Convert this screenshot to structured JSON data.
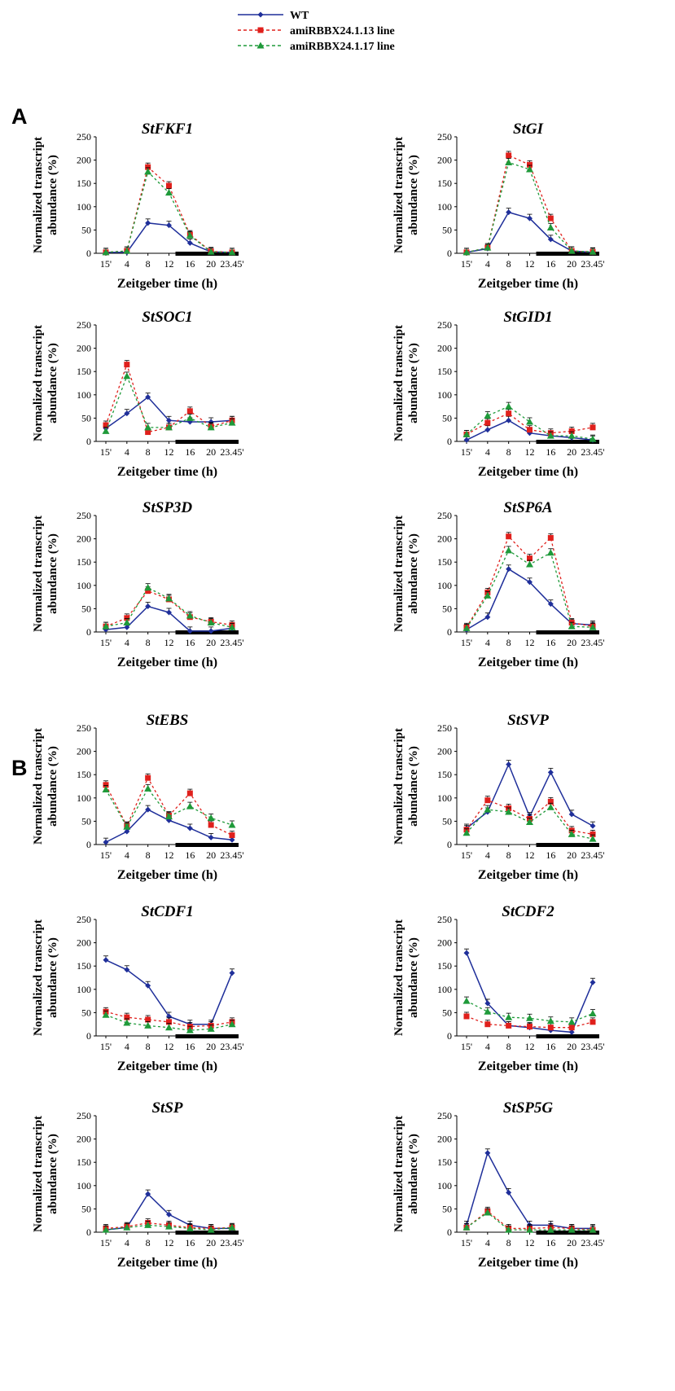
{
  "figure": {
    "panel_labels": [
      "A",
      "B"
    ],
    "colors": {
      "WT": "#1f2f9a",
      "line13": "#e0201c",
      "line17": "#1f9a3a"
    }
  },
  "legend": [
    {
      "label": "WT",
      "color": "#1f2f9a",
      "style": "solid",
      "marker": "diamond"
    },
    {
      "label": "amiRBBX24.1.13 line",
      "color": "#e0201c",
      "style": "dashed",
      "marker": "square"
    },
    {
      "label": "amiRBBX24.1.17 line",
      "color": "#1f9a3a",
      "style": "dashed",
      "marker": "triangle"
    }
  ],
  "chart_data": [
    {
      "panel": "A",
      "type": "line",
      "title": "StFKF1",
      "xlabel": "Zeitgeber time (h)",
      "ylabel": "Normalized transcript abundance (%)",
      "categories": [
        "15'",
        "4",
        "8",
        "12",
        "16",
        "20",
        "23.45'"
      ],
      "yticks": [
        0,
        50,
        100,
        150,
        200,
        250
      ],
      "ylim": [
        0,
        250
      ],
      "dark_period_from": "12",
      "series": [
        {
          "name": "WT",
          "values": [
            2,
            2,
            65,
            60,
            22,
            3,
            2
          ]
        },
        {
          "name": "amiRBBX24.1.13 line",
          "values": [
            2,
            5,
            185,
            145,
            40,
            4,
            2
          ]
        },
        {
          "name": "amiRBBX24.1.17 line",
          "values": [
            2,
            5,
            175,
            130,
            38,
            3,
            2
          ]
        }
      ]
    },
    {
      "panel": "A",
      "type": "line",
      "title": "StGI",
      "xlabel": "Zeitgeber time (h)",
      "ylabel": "Normalized transcript abundance (%)",
      "categories": [
        "15'",
        "4",
        "8",
        "12",
        "16",
        "20",
        "23.45'"
      ],
      "yticks": [
        0,
        50,
        100,
        150,
        200,
        250
      ],
      "ylim": [
        0,
        250
      ],
      "dark_period_from": "12",
      "series": [
        {
          "name": "WT",
          "values": [
            2,
            10,
            88,
            75,
            30,
            5,
            2
          ]
        },
        {
          "name": "amiRBBX24.1.13 line",
          "values": [
            2,
            12,
            210,
            190,
            75,
            5,
            3
          ]
        },
        {
          "name": "amiRBBX24.1.17 line",
          "values": [
            2,
            12,
            195,
            180,
            55,
            5,
            3
          ]
        }
      ]
    },
    {
      "panel": "A",
      "type": "line",
      "title": "StSOC1",
      "xlabel": "Zeitgeber time (h)",
      "ylabel": "Normalized transcript abundance (%)",
      "categories": [
        "15'",
        "4",
        "8",
        "12",
        "16",
        "20",
        "23.45'"
      ],
      "yticks": [
        0,
        50,
        100,
        150,
        200,
        250
      ],
      "ylim": [
        0,
        250
      ],
      "dark_period_from": "12",
      "series": [
        {
          "name": "WT",
          "values": [
            28,
            60,
            95,
            45,
            42,
            42,
            45
          ]
        },
        {
          "name": "amiRBBX24.1.13 line",
          "values": [
            35,
            165,
            20,
            30,
            65,
            32,
            45
          ]
        },
        {
          "name": "amiRBBX24.1.17 line",
          "values": [
            22,
            140,
            30,
            30,
            50,
            30,
            40
          ]
        }
      ]
    },
    {
      "panel": "A",
      "type": "line",
      "title": "StGID1",
      "xlabel": "Zeitgeber time (h)",
      "ylabel": "Normalized transcript abundance (%)",
      "categories": [
        "15'",
        "4",
        "8",
        "12",
        "16",
        "20",
        "23.45'"
      ],
      "yticks": [
        0,
        50,
        100,
        150,
        200,
        250
      ],
      "ylim": [
        0,
        250
      ],
      "dark_period_from": "12",
      "series": [
        {
          "name": "WT",
          "values": [
            3,
            25,
            45,
            18,
            12,
            8,
            3
          ]
        },
        {
          "name": "amiRBBX24.1.13 line",
          "values": [
            15,
            40,
            60,
            25,
            18,
            22,
            30
          ]
        },
        {
          "name": "amiRBBX24.1.17 line",
          "values": [
            15,
            55,
            75,
            42,
            12,
            12,
            5
          ]
        }
      ]
    },
    {
      "panel": "A",
      "type": "line",
      "title": "StSP3D",
      "xlabel": "Zeitgeber time (h)",
      "ylabel": "Normalized transcript abundance (%)",
      "categories": [
        "15'",
        "4",
        "8",
        "12",
        "16",
        "20",
        "23.45'"
      ],
      "yticks": [
        0,
        50,
        100,
        150,
        200,
        250
      ],
      "ylim": [
        0,
        250
      ],
      "dark_period_from": "12",
      "series": [
        {
          "name": "WT",
          "values": [
            5,
            10,
            55,
            42,
            2,
            2,
            8
          ]
        },
        {
          "name": "amiRBBX24.1.13 line",
          "values": [
            12,
            30,
            88,
            70,
            32,
            22,
            15
          ]
        },
        {
          "name": "amiRBBX24.1.17 line",
          "values": [
            12,
            20,
            95,
            72,
            35,
            20,
            10
          ]
        }
      ]
    },
    {
      "panel": "A",
      "type": "line",
      "title": "StSP6A",
      "xlabel": "Zeitgeber time (h)",
      "ylabel": "Normalized transcript abundance (%)",
      "categories": [
        "15'",
        "4",
        "8",
        "12",
        "16",
        "20",
        "23.45'"
      ],
      "yticks": [
        0,
        50,
        100,
        150,
        200,
        250
      ],
      "ylim": [
        0,
        250
      ],
      "dark_period_from": "12",
      "series": [
        {
          "name": "WT",
          "values": [
            5,
            32,
            135,
            107,
            60,
            18,
            15
          ]
        },
        {
          "name": "amiRBBX24.1.13 line",
          "values": [
            10,
            85,
            205,
            158,
            202,
            20,
            12
          ]
        },
        {
          "name": "amiRBBX24.1.17 line",
          "values": [
            8,
            78,
            175,
            145,
            170,
            12,
            10
          ]
        }
      ]
    },
    {
      "panel": "B",
      "type": "line",
      "title": "StEBS",
      "xlabel": "Zeitgeber time (h)",
      "ylabel": "Normalized transcript abundance (%)",
      "categories": [
        "15'",
        "4",
        "8",
        "12",
        "16",
        "20",
        "23.45'"
      ],
      "yticks": [
        0,
        50,
        100,
        150,
        200,
        250
      ],
      "ylim": [
        0,
        250
      ],
      "dark_period_from": "12",
      "series": [
        {
          "name": "WT",
          "values": [
            5,
            28,
            75,
            52,
            35,
            15,
            10
          ]
        },
        {
          "name": "amiRBBX24.1.13 line",
          "values": [
            128,
            40,
            143,
            62,
            110,
            42,
            20
          ]
        },
        {
          "name": "amiRBBX24.1.17 line",
          "values": [
            118,
            38,
            120,
            60,
            82,
            57,
            42
          ]
        }
      ]
    },
    {
      "panel": "B",
      "type": "line",
      "title": "StSVP",
      "xlabel": "Zeitgeber time (h)",
      "ylabel": "Normalized transcript abundance (%)",
      "categories": [
        "15'",
        "4",
        "8",
        "12",
        "16",
        "20",
        "23.45'"
      ],
      "yticks": [
        0,
        50,
        100,
        150,
        200,
        250
      ],
      "ylim": [
        0,
        250
      ],
      "dark_period_from": "12",
      "series": [
        {
          "name": "WT",
          "values": [
            35,
            70,
            172,
            60,
            155,
            65,
            40
          ]
        },
        {
          "name": "amiRBBX24.1.13 line",
          "values": [
            32,
            95,
            78,
            55,
            92,
            30,
            22
          ]
        },
        {
          "name": "amiRBBX24.1.17 line",
          "values": [
            25,
            75,
            70,
            48,
            80,
            22,
            12
          ]
        }
      ]
    },
    {
      "panel": "B",
      "type": "line",
      "title": "StCDF1",
      "xlabel": "Zeitgeber time (h)",
      "ylabel": "Normalized transcript abundance (%)",
      "categories": [
        "15'",
        "4",
        "8",
        "12",
        "16",
        "20",
        "23.45'"
      ],
      "yticks": [
        0,
        50,
        100,
        150,
        200,
        250
      ],
      "ylim": [
        0,
        250
      ],
      "dark_period_from": "12",
      "series": [
        {
          "name": "WT",
          "values": [
            163,
            142,
            108,
            42,
            25,
            25,
            135
          ]
        },
        {
          "name": "amiRBBX24.1.13 line",
          "values": [
            52,
            40,
            35,
            30,
            20,
            22,
            30
          ]
        },
        {
          "name": "amiRBBX24.1.17 line",
          "values": [
            45,
            28,
            22,
            18,
            12,
            15,
            25
          ]
        }
      ]
    },
    {
      "panel": "B",
      "type": "line",
      "title": "StCDF2",
      "xlabel": "Zeitgeber time (h)",
      "ylabel": "Normalized transcript abundance (%)",
      "categories": [
        "15'",
        "4",
        "8",
        "12",
        "16",
        "20",
        "23.45'"
      ],
      "yticks": [
        0,
        50,
        100,
        150,
        200,
        250
      ],
      "ylim": [
        0,
        250
      ],
      "dark_period_from": "12",
      "series": [
        {
          "name": "WT",
          "values": [
            178,
            70,
            22,
            18,
            12,
            8,
            115
          ]
        },
        {
          "name": "amiRBBX24.1.13 line",
          "values": [
            42,
            25,
            22,
            20,
            18,
            18,
            30
          ]
        },
        {
          "name": "amiRBBX24.1.17 line",
          "values": [
            75,
            52,
            40,
            38,
            32,
            30,
            48
          ]
        }
      ]
    },
    {
      "panel": "B",
      "type": "line",
      "title": "StSP",
      "xlabel": "Zeitgeber time (h)",
      "ylabel": "Normalized transcript abundance (%)",
      "categories": [
        "15'",
        "4",
        "8",
        "12",
        "16",
        "20",
        "23.45'"
      ],
      "yticks": [
        0,
        50,
        100,
        150,
        200,
        250
      ],
      "ylim": [
        0,
        250
      ],
      "dark_period_from": "12",
      "series": [
        {
          "name": "WT",
          "values": [
            5,
            10,
            82,
            38,
            15,
            8,
            8
          ]
        },
        {
          "name": "amiRBBX24.1.13 line",
          "values": [
            8,
            12,
            20,
            15,
            10,
            8,
            10
          ]
        },
        {
          "name": "amiRBBX24.1.17 line",
          "values": [
            5,
            10,
            15,
            12,
            8,
            5,
            10
          ]
        }
      ]
    },
    {
      "panel": "B",
      "type": "line",
      "title": "StSP5G",
      "xlabel": "Zeitgeber time (h)",
      "ylabel": "Normalized transcript abundance (%)",
      "categories": [
        "15'",
        "4",
        "8",
        "12",
        "16",
        "20",
        "23.45'"
      ],
      "yticks": [
        0,
        50,
        100,
        150,
        200,
        250
      ],
      "ylim": [
        0,
        250
      ],
      "dark_period_from": "12",
      "series": [
        {
          "name": "WT",
          "values": [
            15,
            170,
            85,
            15,
            15,
            8,
            8
          ]
        },
        {
          "name": "amiRBBX24.1.13 line",
          "values": [
            10,
            45,
            8,
            8,
            10,
            8,
            5
          ]
        },
        {
          "name": "amiRBBX24.1.17 line",
          "values": [
            10,
            42,
            5,
            5,
            5,
            5,
            5
          ]
        }
      ]
    }
  ]
}
